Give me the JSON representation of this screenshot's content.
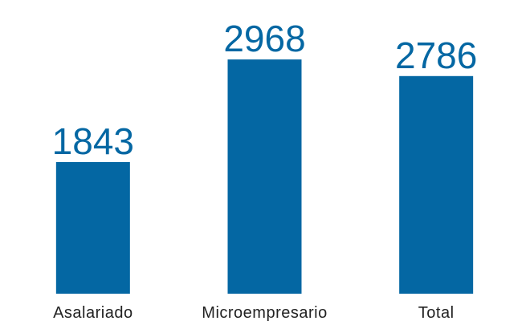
{
  "chart_data": {
    "type": "bar",
    "categories": [
      "Asalariado",
      "Microempresario",
      "Total"
    ],
    "values": [
      1843,
      2968,
      2786
    ],
    "color": "#0467a3",
    "ylim": [
      400,
      3400
    ]
  }
}
